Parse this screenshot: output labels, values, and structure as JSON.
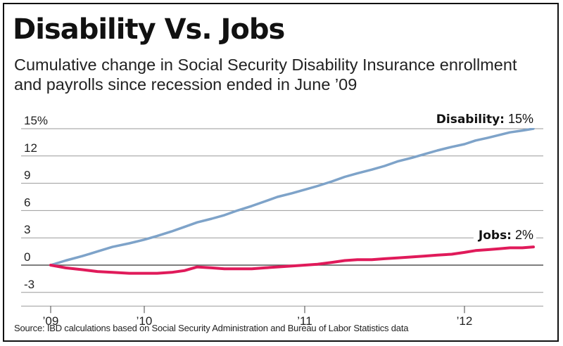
{
  "header": {
    "title": "Disability Vs. Jobs",
    "subtitle": "Cumulative change in Social Security Disability Insurance enrollment and payrolls since recession ended in June ’09"
  },
  "footer": {
    "source": "Source: IBD calculations based on Social Security Administration and Bureau of Labor Statistics data"
  },
  "chart_data": {
    "type": "line",
    "title": "Disability Vs. Jobs",
    "xlabel": "",
    "ylabel": "",
    "ylim": [
      -4.5,
      15
    ],
    "y_ticks": [
      15,
      12,
      9,
      6,
      3,
      0,
      -3
    ],
    "y_tick_labels": [
      "15%",
      "12",
      "9",
      "6",
      "3",
      "0",
      "-3"
    ],
    "x_range": [
      2009.5,
      2012.5
    ],
    "x_ticks": [
      2009.5,
      2010,
      2011,
      2012
    ],
    "x_tick_labels": [
      "’09",
      "’10",
      "’11",
      "’12"
    ],
    "grid": true,
    "series": [
      {
        "name": "Disability",
        "label_name": "Disability:",
        "label_value": "15%",
        "color": "#7ea3c9",
        "x": [
          2009.5,
          2009.58,
          2009.67,
          2009.75,
          2009.83,
          2009.92,
          2010.0,
          2010.08,
          2010.17,
          2010.25,
          2010.33,
          2010.42,
          2010.5,
          2010.58,
          2010.67,
          2010.75,
          2010.83,
          2010.92,
          2011.0,
          2011.08,
          2011.17,
          2011.25,
          2011.33,
          2011.42,
          2011.5,
          2011.58,
          2011.67,
          2011.75,
          2011.83,
          2011.92,
          2012.0,
          2012.08,
          2012.17,
          2012.25,
          2012.33,
          2012.42,
          2012.5
        ],
        "values": [
          0.0,
          0.5,
          1.0,
          1.5,
          2.0,
          2.4,
          2.8,
          3.2,
          3.7,
          4.2,
          4.7,
          5.1,
          5.5,
          6.0,
          6.5,
          7.0,
          7.5,
          7.9,
          8.3,
          8.7,
          9.2,
          9.7,
          10.1,
          10.5,
          10.9,
          11.4,
          11.8,
          12.2,
          12.6,
          13.0,
          13.3,
          13.7,
          14.0,
          14.3,
          14.6,
          14.8,
          15.0
        ]
      },
      {
        "name": "Jobs",
        "label_name": "Jobs:",
        "label_value": "2%",
        "color": "#e01a5a",
        "x": [
          2009.5,
          2009.58,
          2009.67,
          2009.75,
          2009.83,
          2009.92,
          2010.0,
          2010.08,
          2010.17,
          2010.25,
          2010.33,
          2010.42,
          2010.5,
          2010.58,
          2010.67,
          2010.75,
          2010.83,
          2010.92,
          2011.0,
          2011.08,
          2011.17,
          2011.25,
          2011.33,
          2011.42,
          2011.5,
          2011.58,
          2011.67,
          2011.75,
          2011.83,
          2011.92,
          2012.0,
          2012.08,
          2012.17,
          2012.25,
          2012.33,
          2012.42,
          2012.5
        ],
        "values": [
          0.0,
          -0.3,
          -0.5,
          -0.7,
          -0.8,
          -0.9,
          -0.9,
          -0.9,
          -0.8,
          -0.6,
          -0.2,
          -0.3,
          -0.4,
          -0.4,
          -0.4,
          -0.3,
          -0.2,
          -0.1,
          0.0,
          0.1,
          0.3,
          0.5,
          0.6,
          0.6,
          0.7,
          0.8,
          0.9,
          1.0,
          1.1,
          1.2,
          1.4,
          1.6,
          1.7,
          1.8,
          1.9,
          1.9,
          2.0
        ]
      }
    ]
  }
}
